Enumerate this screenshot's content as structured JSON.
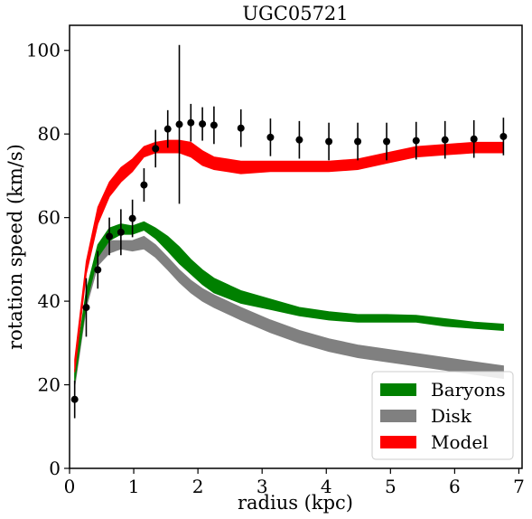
{
  "chart_data": {
    "type": "line",
    "title": "UGC05721",
    "xlabel": "radius (kpc)",
    "ylabel": "rotation speed (km/s)",
    "xlim": [
      0,
      7.05
    ],
    "ylim": [
      0,
      106
    ],
    "xticks": [
      "0",
      "1",
      "2",
      "3",
      "4",
      "5",
      "6",
      "7"
    ],
    "yticks": [
      "0",
      "20",
      "40",
      "60",
      "80",
      "100"
    ],
    "grid": false,
    "legend_position": "bottom-right",
    "observations": {
      "x": [
        0.08,
        0.26,
        0.44,
        0.62,
        0.8,
        0.98,
        1.16,
        1.34,
        1.53,
        1.71,
        1.89,
        2.07,
        2.25,
        2.67,
        3.13,
        3.58,
        4.04,
        4.49,
        4.94,
        5.4,
        5.85,
        6.3,
        6.76
      ],
      "y": [
        16.5,
        38.5,
        47.5,
        55.5,
        56.5,
        59.8,
        67.8,
        76.5,
        81.2,
        82.3,
        82.7,
        82.4,
        82.1,
        81.4,
        79.2,
        78.6,
        78.2,
        78.2,
        78.2,
        78.4,
        78.6,
        78.8,
        79.4
      ],
      "yerr": [
        4.5,
        7.0,
        4.5,
        4.5,
        5.5,
        4.5,
        4.0,
        4.5,
        4.5,
        19.0,
        4.5,
        4.0,
        4.5,
        4.5,
        4.5,
        4.5,
        4.5,
        4.5,
        4.5,
        4.5,
        4.5,
        4.5,
        4.5
      ]
    },
    "series": [
      {
        "name": "Baryons",
        "color": "#008000",
        "x": [
          0.08,
          0.26,
          0.44,
          0.62,
          0.8,
          0.98,
          1.16,
          1.34,
          1.53,
          1.71,
          1.89,
          2.07,
          2.25,
          2.67,
          3.13,
          3.58,
          4.04,
          4.49,
          4.94,
          5.4,
          5.85,
          6.3,
          6.76
        ],
        "y_low": [
          20.5,
          39.5,
          50.5,
          54.5,
          56.0,
          56.0,
          57.0,
          55.0,
          52.0,
          49.0,
          46.5,
          44.0,
          42.0,
          39.5,
          38.0,
          36.5,
          35.5,
          35.0,
          35.0,
          35.0,
          34.0,
          33.5,
          33.0
        ],
        "y_high": [
          23.5,
          42.5,
          53.5,
          57.5,
          58.5,
          58.0,
          59.0,
          57.5,
          55.5,
          53.0,
          50.0,
          47.5,
          45.5,
          42.5,
          40.5,
          38.5,
          37.5,
          36.8,
          36.8,
          36.6,
          35.8,
          35.0,
          34.5
        ]
      },
      {
        "name": "Disk",
        "color": "#808080",
        "x": [
          0.08,
          0.26,
          0.44,
          0.62,
          0.8,
          0.98,
          1.16,
          1.34,
          1.53,
          1.71,
          1.89,
          2.07,
          2.25,
          2.67,
          3.13,
          3.58,
          4.04,
          4.49,
          4.94,
          5.4,
          5.85,
          6.3,
          6.76
        ],
        "y_low": [
          19.5,
          38.5,
          48.5,
          51.5,
          52.5,
          52.0,
          52.5,
          50.5,
          47.5,
          44.5,
          42.0,
          40.0,
          38.5,
          35.5,
          32.5,
          30.0,
          28.0,
          26.5,
          25.5,
          24.5,
          23.5,
          22.5,
          21.5
        ],
        "y_high": [
          22.5,
          41.5,
          51.5,
          54.5,
          54.5,
          54.5,
          55.5,
          53.5,
          50.5,
          47.5,
          45.0,
          43.0,
          41.5,
          38.5,
          35.5,
          33.0,
          31.0,
          29.5,
          28.5,
          27.5,
          26.5,
          25.5,
          24.5
        ]
      },
      {
        "name": "Model",
        "color": "#ff0000",
        "x": [
          0.08,
          0.26,
          0.44,
          0.62,
          0.8,
          0.98,
          1.16,
          1.34,
          1.53,
          1.71,
          1.89,
          2.07,
          2.25,
          2.67,
          3.13,
          3.58,
          4.04,
          4.49,
          4.94,
          5.4,
          5.85,
          6.3,
          6.76
        ],
        "y_low": [
          23.0,
          46.5,
          58.5,
          65.0,
          68.5,
          71.0,
          74.5,
          75.5,
          75.5,
          75.5,
          74.5,
          72.5,
          71.5,
          70.5,
          71.0,
          71.0,
          71.0,
          71.5,
          73.0,
          74.5,
          75.0,
          75.5,
          75.5
        ],
        "y_high": [
          26.0,
          49.5,
          62.5,
          68.5,
          72.0,
          74.0,
          77.0,
          78.0,
          78.5,
          78.5,
          78.0,
          76.0,
          74.5,
          73.5,
          73.5,
          73.5,
          73.5,
          74.0,
          75.5,
          77.0,
          77.5,
          78.0,
          78.0
        ]
      }
    ]
  }
}
